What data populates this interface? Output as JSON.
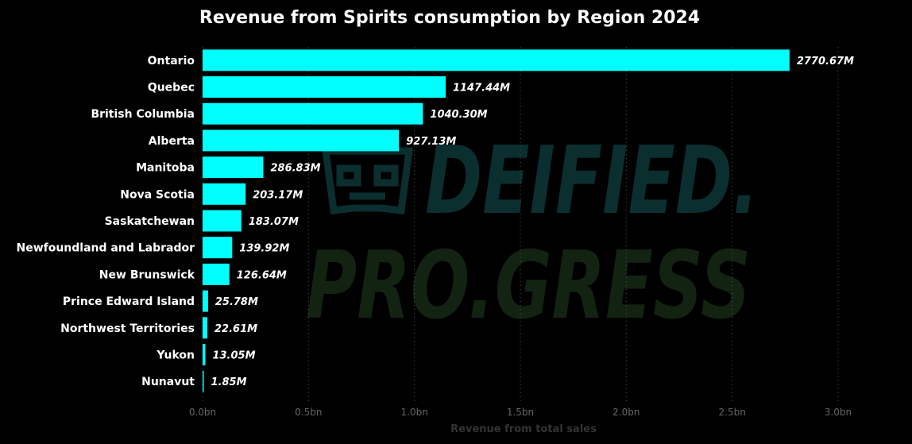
{
  "watermark": {
    "line1": "DEIFIED.",
    "line2": "PRO.GRESS",
    "color1": "#0b2e2f",
    "color2": "#122312"
  },
  "colors": {
    "background": "#000000",
    "bar": "#00ffff",
    "grid": "#555555",
    "text": "#ffffff",
    "tick": "#666666"
  },
  "chart_data": {
    "type": "bar",
    "orientation": "horizontal",
    "title": "Revenue from Spirits consumption by Region 2024",
    "xlabel": "Revenue from total sales",
    "ylabel": "",
    "xlim": [
      0,
      3000000000
    ],
    "grid": "vertical dotted",
    "categories": [
      "Ontario",
      "Quebec",
      "British Columbia",
      "Alberta",
      "Manitoba",
      "Nova Scotia",
      "Saskatchewan",
      "Newfoundland and Labrador",
      "New Brunswick",
      "Prince Edward Island",
      "Northwest Territories",
      "Yukon",
      "Nunavut"
    ],
    "values": [
      2770670000,
      1147440000,
      1040300000,
      927130000,
      286830000,
      203170000,
      183070000,
      139920000,
      126640000,
      25780000,
      22610000,
      13050000,
      1850000
    ],
    "value_labels": [
      "2770.67M",
      "1147.44M",
      "1040.30M",
      "927.13M",
      "286.83M",
      "203.17M",
      "183.07M",
      "139.92M",
      "126.64M",
      "25.78M",
      "22.61M",
      "13.05M",
      "1.85M"
    ],
    "ticks": [
      0,
      500000000,
      1000000000,
      1500000000,
      2000000000,
      2500000000,
      3000000000
    ],
    "tick_labels": [
      "0.0bn",
      "0.5bn",
      "1.0bn",
      "1.5bn",
      "2.0bn",
      "2.5bn",
      "3.0bn"
    ]
  }
}
